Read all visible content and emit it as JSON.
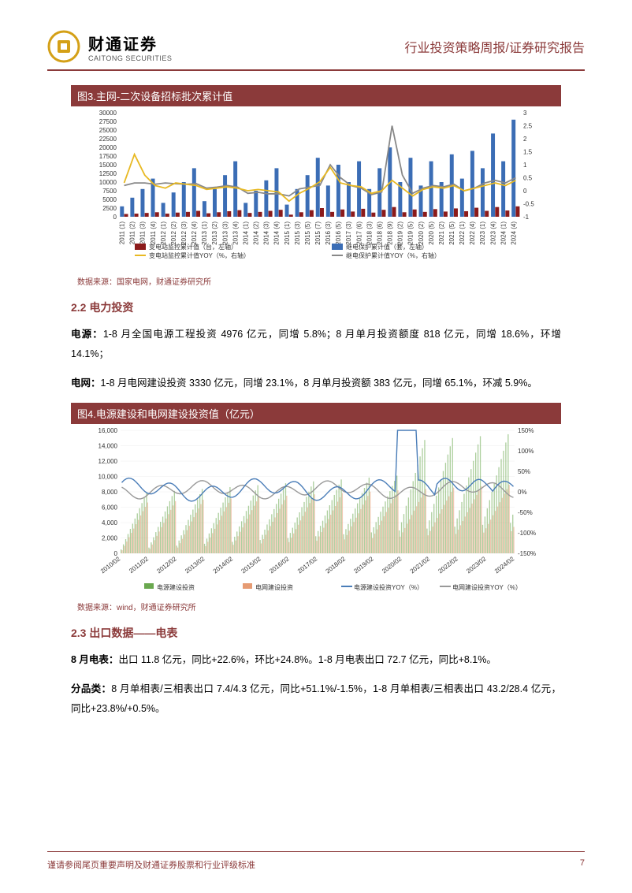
{
  "header": {
    "company_cn": "财通证券",
    "company_en": "CAITONG SECURITIES",
    "report_type": "行业投资策略周报/证券研究报告"
  },
  "chart3": {
    "title": "图3.主网-二次设备招标批次累计值",
    "type": "bar+line",
    "y1_label_values": [
      "0",
      "2500",
      "5000",
      "7500",
      "10000",
      "12500",
      "15000",
      "17500",
      "20000",
      "22500",
      "25000",
      "27500",
      "30000"
    ],
    "y1_max": 30000,
    "y2_values": [
      "-1",
      "-0.5",
      "0",
      "0.5",
      "1",
      "1.5",
      "2",
      "2.5",
      "3"
    ],
    "y2_min": -1,
    "y2_max": 3,
    "x_labels": [
      "2011 (1)",
      "2011 (2)",
      "2011 (3)",
      "2011 (4)",
      "2012 (1)",
      "2012 (2)",
      "2012 (3)",
      "2012 (4)",
      "2013 (1)",
      "2013 (2)",
      "2013 (3)",
      "2013 (4)",
      "2014 (1)",
      "2014 (2)",
      "2014 (3)",
      "2014 (4)",
      "2015 (1)",
      "2015 (3)",
      "2015 (5)",
      "2015 (7)",
      "2016 (3)",
      "2016 (5)",
      "2017 (3)",
      "2017 (6)",
      "2018 (3)",
      "2018 (6)",
      "2018 (9)",
      "2019 (2)",
      "2019 (5)",
      "2020 (2)",
      "2020 (5)",
      "2021 (2)",
      "2021 (5)",
      "2022 (1)",
      "2022 (4)",
      "2023 (1)",
      "2023 (4)",
      "2024 (1)",
      "2024 (4)"
    ],
    "series_red_bar": {
      "name": "变电站监控累计值（台，左轴）",
      "color": "#8b1a1a",
      "values": [
        800,
        900,
        1100,
        1300,
        900,
        1200,
        1400,
        1700,
        1000,
        1300,
        1600,
        1900,
        1100,
        1400,
        1700,
        2000,
        600,
        1300,
        1900,
        2500,
        1400,
        2100,
        1500,
        2300,
        1200,
        2000,
        2800,
        1300,
        2100,
        1400,
        2200,
        1500,
        2400,
        1600,
        2600,
        1700,
        2800,
        1800,
        3000
      ]
    },
    "series_blue_bar": {
      "name": "继电保护累计值（套，左轴）",
      "color": "#3b6db5",
      "values": [
        3000,
        5500,
        8000,
        11000,
        4000,
        7000,
        10000,
        14000,
        4500,
        8000,
        12000,
        16000,
        4000,
        7500,
        10500,
        14000,
        3500,
        8000,
        12000,
        17000,
        9000,
        15000,
        10000,
        16000,
        8000,
        14000,
        20000,
        10000,
        17000,
        9000,
        16000,
        10000,
        18000,
        11000,
        19000,
        14000,
        24000,
        16000,
        28000
      ]
    },
    "series_yellow_line": {
      "name": "变电站监控累计值YOY（%，右轴）",
      "color": "#e8b923",
      "values": [
        0.3,
        1.4,
        0.6,
        0.2,
        0.1,
        0.3,
        0.25,
        0.2,
        0.05,
        0.1,
        0.15,
        0.1,
        0.0,
        0.05,
        0.0,
        -0.05,
        -0.4,
        -0.1,
        0.1,
        0.35,
        0.9,
        0.3,
        0.2,
        0.15,
        -0.1,
        0.0,
        0.4,
        0.1,
        -0.2,
        0.05,
        0.15,
        0.1,
        0.2,
        0.0,
        0.1,
        0.2,
        0.3,
        0.2,
        0.4
      ]
    },
    "series_gray_line": {
      "name": "继电保护累计值YOY（%，右轴）",
      "color": "#888888",
      "values": [
        0.2,
        0.3,
        0.3,
        0.25,
        0.3,
        0.27,
        0.25,
        0.27,
        0.1,
        0.14,
        0.2,
        0.14,
        -0.1,
        -0.06,
        -0.12,
        -0.12,
        -0.2,
        0.07,
        0.14,
        0.21,
        1.0,
        0.5,
        0.2,
        0.1,
        -0.15,
        -0.05,
        2.5,
        0.6,
        -0.1,
        0.1,
        0.2,
        0.15,
        0.25,
        0.0,
        0.1,
        0.3,
        0.4,
        0.3,
        0.5
      ]
    },
    "legend_items": [
      {
        "label": "变电站监控累计值（台，左轴）",
        "color": "#8b1a1a",
        "type": "bar"
      },
      {
        "label": "继电保护累计值（套，左轴）",
        "color": "#3b6db5",
        "type": "bar"
      },
      {
        "label": "变电站监控累计值YOY（%，右轴）",
        "color": "#e8b923",
        "type": "line"
      },
      {
        "label": "继电保护累计值YOY（%，右轴）",
        "color": "#888888",
        "type": "line"
      }
    ],
    "source": "数据来源：国家电网，财通证券研究所"
  },
  "section22": {
    "heading": "2.2  电力投资",
    "para1_bold": "电源：",
    "para1_rest": "1-8 月全国电源工程投资 4976 亿元，同增 5.8%；8 月单月投资额度 818 亿元，同增 18.6%，环增 14.1%；",
    "para2_bold": "电网：",
    "para2_rest": "1-8 月电网建设投资 3330 亿元，同增 23.1%，8 月单月投资额 383 亿元，同增 65.1%，环减 5.9%。"
  },
  "chart4": {
    "title": "图4.电源建设和电网建设投资值（亿元）",
    "type": "bar+line",
    "y1_values": [
      "0",
      "2,000",
      "4,000",
      "6,000",
      "8,000",
      "10,000",
      "12,000",
      "14,000",
      "16,000"
    ],
    "y1_max": 16000,
    "y2_values": [
      "-150%",
      "-100%",
      "-50%",
      "0%",
      "50%",
      "100%",
      "150%"
    ],
    "y2_min": -150,
    "y2_max": 150,
    "x_labels": [
      "2010/02",
      "2011/02",
      "2012/02",
      "2013/02",
      "2014/02",
      "2015/02",
      "2016/02",
      "2017/02",
      "2018/02",
      "2019/02",
      "2020/02",
      "2021/02",
      "2022/02",
      "2023/02",
      "2024/02"
    ],
    "n_points": 170,
    "series_green_bar": {
      "name": "电源建设投资",
      "color": "#6aa84f"
    },
    "series_orange_bar": {
      "name": "电网建设投资",
      "color": "#e69b73"
    },
    "series_blue_line": {
      "name": "电源建设投资YOY（%）",
      "color": "#4a7db8"
    },
    "series_gray_line": {
      "name": "电网建设投资YOY（%）",
      "color": "#999999"
    },
    "legend_items": [
      {
        "label": "电源建设投资",
        "color": "#6aa84f",
        "type": "bar"
      },
      {
        "label": "电网建设投资",
        "color": "#e69b73",
        "type": "bar"
      },
      {
        "label": "电源建设投资YOY（%）",
        "color": "#4a7db8",
        "type": "line"
      },
      {
        "label": "电网建设投资YOY（%）",
        "color": "#999999",
        "type": "line"
      }
    ],
    "source": "数据来源：wind，财通证券研究所"
  },
  "section23": {
    "heading": "2.3  出口数据——电表",
    "para1_bold": "8 月电表：",
    "para1_rest": "出口 11.8 亿元，同比+22.6%，环比+24.8%。1-8 月电表出口 72.7 亿元，同比+8.1%。",
    "para2_bold": "分品类：",
    "para2_rest": "8 月单相表/三相表出口 7.4/4.3 亿元，同比+51.1%/-1.5%，1-8 月单相表/三相表出口 43.2/28.4 亿元，同比+23.8%/+0.5%。"
  },
  "footer": {
    "disclaimer": "谨请参阅尾页重要声明及财通证券股票和行业评级标准",
    "page": "7"
  },
  "colors": {
    "brand": "#8b3a3a",
    "logo_gold": "#d4a017"
  }
}
